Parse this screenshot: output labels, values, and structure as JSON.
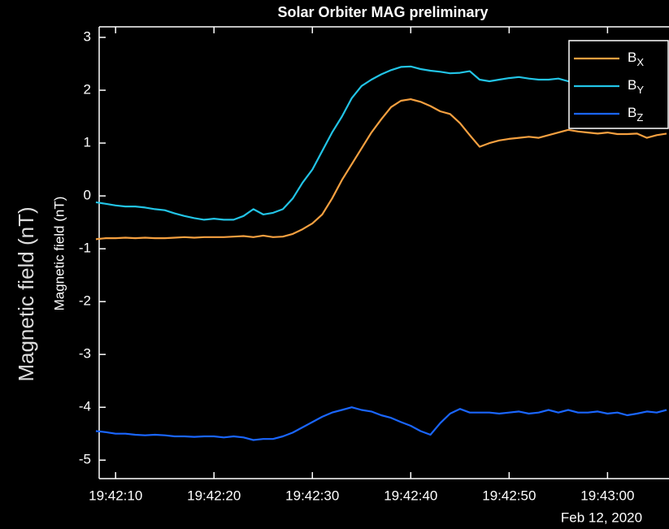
{
  "chart_data": {
    "type": "line",
    "title": "Solar Orbiter MAG preliminary",
    "ylabel": "Magnetic field (nT)",
    "background_label": "Magnetic field (nT)",
    "x_sublabel": "Feb 12, 2020",
    "x": [
      "19:42:08",
      "19:42:09",
      "19:42:10",
      "19:42:11",
      "19:42:12",
      "19:42:13",
      "19:42:14",
      "19:42:15",
      "19:42:16",
      "19:42:17",
      "19:42:18",
      "19:42:19",
      "19:42:20",
      "19:42:21",
      "19:42:22",
      "19:42:23",
      "19:42:24",
      "19:42:25",
      "19:42:26",
      "19:42:27",
      "19:42:28",
      "19:42:29",
      "19:42:30",
      "19:42:31",
      "19:42:32",
      "19:42:33",
      "19:42:34",
      "19:42:35",
      "19:42:36",
      "19:42:37",
      "19:42:38",
      "19:42:39",
      "19:42:40",
      "19:42:41",
      "19:42:42",
      "19:42:43",
      "19:42:44",
      "19:42:45",
      "19:42:46",
      "19:42:47",
      "19:42:48",
      "19:42:49",
      "19:42:50",
      "19:42:51",
      "19:42:52",
      "19:42:53",
      "19:42:54",
      "19:42:55",
      "19:42:56",
      "19:42:57",
      "19:42:58",
      "19:42:59",
      "19:43:00",
      "19:43:01",
      "19:43:02",
      "19:43:03",
      "19:43:04",
      "19:43:05",
      "19:43:06"
    ],
    "series": [
      {
        "name": "BX",
        "color": "#f5a040",
        "values": [
          -0.82,
          -0.8,
          -0.8,
          -0.79,
          -0.8,
          -0.79,
          -0.8,
          -0.8,
          -0.79,
          -0.78,
          -0.79,
          -0.78,
          -0.78,
          -0.78,
          -0.77,
          -0.76,
          -0.78,
          -0.75,
          -0.78,
          -0.77,
          -0.72,
          -0.63,
          -0.52,
          -0.35,
          -0.05,
          0.3,
          0.6,
          0.9,
          1.2,
          1.45,
          1.68,
          1.8,
          1.83,
          1.78,
          1.7,
          1.6,
          1.55,
          1.38,
          1.15,
          0.93,
          1.0,
          1.05,
          1.08,
          1.1,
          1.12,
          1.1,
          1.15,
          1.2,
          1.25,
          1.22,
          1.2,
          1.18,
          1.2,
          1.17,
          1.17,
          1.18,
          1.1,
          1.15,
          1.18
        ]
      },
      {
        "name": "BY",
        "color": "#22c4e6",
        "values": [
          -0.12,
          -0.15,
          -0.18,
          -0.2,
          -0.2,
          -0.22,
          -0.25,
          -0.27,
          -0.33,
          -0.38,
          -0.42,
          -0.45,
          -0.43,
          -0.45,
          -0.45,
          -0.38,
          -0.25,
          -0.35,
          -0.32,
          -0.25,
          -0.05,
          0.25,
          0.5,
          0.85,
          1.2,
          1.5,
          1.85,
          2.08,
          2.2,
          2.3,
          2.38,
          2.44,
          2.45,
          2.4,
          2.37,
          2.35,
          2.32,
          2.33,
          2.36,
          2.2,
          2.17,
          2.2,
          2.23,
          2.25,
          2.22,
          2.2,
          2.2,
          2.22,
          2.17,
          2.2,
          2.22,
          2.2,
          2.2,
          2.17,
          2.15,
          2.15,
          2.2,
          2.22,
          2.25
        ]
      },
      {
        "name": "BZ",
        "color": "#1a66ff",
        "values": [
          -4.45,
          -4.47,
          -4.5,
          -4.5,
          -4.52,
          -4.53,
          -4.52,
          -4.53,
          -4.55,
          -4.55,
          -4.56,
          -4.55,
          -4.55,
          -4.57,
          -4.55,
          -4.57,
          -4.62,
          -4.6,
          -4.6,
          -4.55,
          -4.48,
          -4.38,
          -4.28,
          -4.18,
          -4.1,
          -4.05,
          -4.0,
          -4.05,
          -4.08,
          -4.15,
          -4.2,
          -4.28,
          -4.35,
          -4.45,
          -4.52,
          -4.3,
          -4.12,
          -4.03,
          -4.1,
          -4.1,
          -4.1,
          -4.12,
          -4.1,
          -4.08,
          -4.12,
          -4.1,
          -4.05,
          -4.1,
          -4.05,
          -4.1,
          -4.1,
          -4.08,
          -4.12,
          -4.1,
          -4.15,
          -4.12,
          -4.08,
          -4.1,
          -4.05
        ]
      }
    ],
    "xlim": [
      "19:42:08",
      "19:43:06"
    ],
    "xticks": [
      "19:42:10",
      "19:42:20",
      "19:42:30",
      "19:42:40",
      "19:42:50",
      "19:43:00"
    ],
    "ylim": [
      -5.35,
      3.2
    ],
    "yticks": [
      -5,
      -4,
      -3,
      -2,
      -1,
      0,
      1,
      2,
      3
    ],
    "grid": false,
    "legend": "upper right"
  }
}
